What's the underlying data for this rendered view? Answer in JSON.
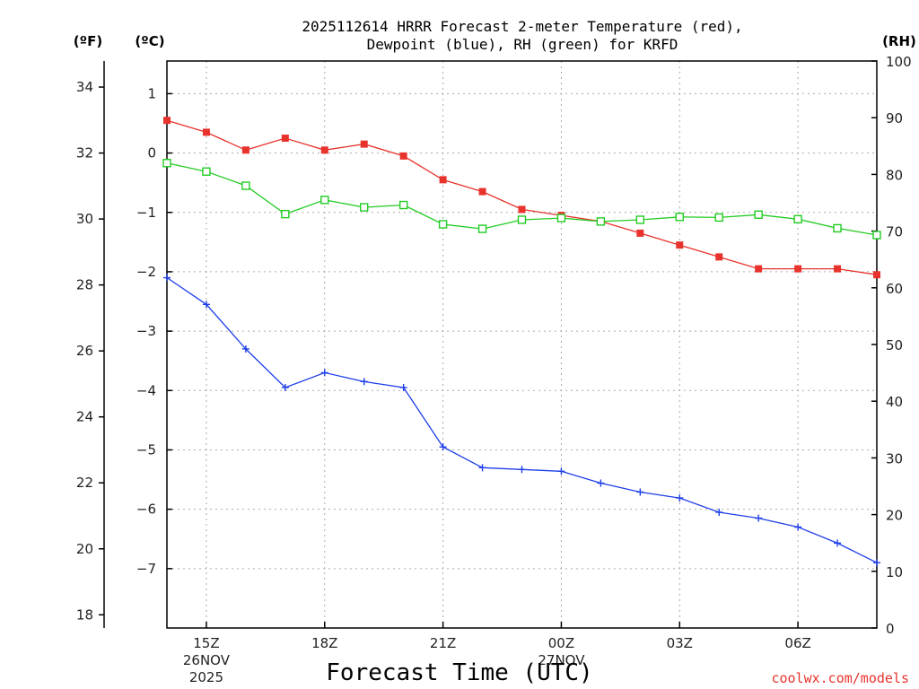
{
  "chart_data": {
    "type": "line",
    "title_line1": "2025112614 HRRR Forecast 2-meter Temperature (red),",
    "title_line2": "Dewpoint (blue), RH (green) for KRFD",
    "xlabel": "Forecast Time (UTC)",
    "credit": "coolwx.com/models",
    "units": {
      "fahrenheit": "(ºF)",
      "celsius": "(ºC)",
      "rh": "(RH)"
    },
    "x_start_hour_utc": 14,
    "x_hours": [
      14,
      15,
      16,
      17,
      18,
      19,
      20,
      21,
      22,
      23,
      24,
      25,
      26,
      27,
      28,
      29,
      30,
      31,
      32
    ],
    "x_ticks": [
      {
        "hour": 15,
        "label": "15Z",
        "sub1": "26NOV",
        "sub2": "2025"
      },
      {
        "hour": 18,
        "label": "18Z",
        "sub1": "",
        "sub2": ""
      },
      {
        "hour": 21,
        "label": "21Z",
        "sub1": "",
        "sub2": ""
      },
      {
        "hour": 24,
        "label": "00Z",
        "sub1": "27NOV",
        "sub2": ""
      },
      {
        "hour": 27,
        "label": "03Z",
        "sub1": "",
        "sub2": ""
      },
      {
        "hour": 30,
        "label": "06Z",
        "sub1": "",
        "sub2": ""
      }
    ],
    "celsius_axis": {
      "ylim": [
        -8,
        1.55
      ],
      "ticks": [
        1,
        0,
        -1,
        -2,
        -3,
        -4,
        -5,
        -6,
        -7
      ]
    },
    "fahrenheit_axis": {
      "ylim": [
        17.6,
        34.79
      ],
      "ticks": [
        18,
        20,
        22,
        24,
        26,
        28,
        30,
        32,
        34
      ]
    },
    "rh_axis": {
      "ylim": [
        0,
        100
      ],
      "ticks": [
        0,
        10,
        20,
        30,
        40,
        50,
        60,
        70,
        80,
        90,
        100
      ]
    },
    "series": [
      {
        "name": "Temperature",
        "unit": "C",
        "color": "#e8332d",
        "marker": "filled-square",
        "values": [
          0.55,
          0.35,
          0.05,
          0.25,
          0.05,
          0.15,
          -0.05,
          -0.45,
          -0.65,
          -0.95,
          -1.05,
          -1.15,
          -1.35,
          -1.55,
          -1.75,
          -1.95,
          -1.95,
          -1.95,
          -2.05
        ]
      },
      {
        "name": "Dewpoint",
        "unit": "C",
        "color": "#1f3fe8",
        "marker": "plus",
        "values": [
          -2.1,
          -2.55,
          -3.3,
          -3.95,
          -3.7,
          -3.85,
          -3.95,
          -4.95,
          -5.3,
          -5.33,
          -5.36,
          -5.56,
          -5.71,
          -5.81,
          -6.05,
          -6.15,
          -6.3,
          -6.57,
          -6.9
        ]
      },
      {
        "name": "RH",
        "unit": "%",
        "color": "#22cc22",
        "marker": "open-square",
        "values": [
          82,
          80.5,
          78,
          73,
          75.5,
          74.2,
          74.6,
          71.2,
          70.4,
          72,
          72.3,
          71.7,
          72,
          72.5,
          72.4,
          72.9,
          72.1,
          70.5,
          69.3
        ]
      }
    ]
  }
}
